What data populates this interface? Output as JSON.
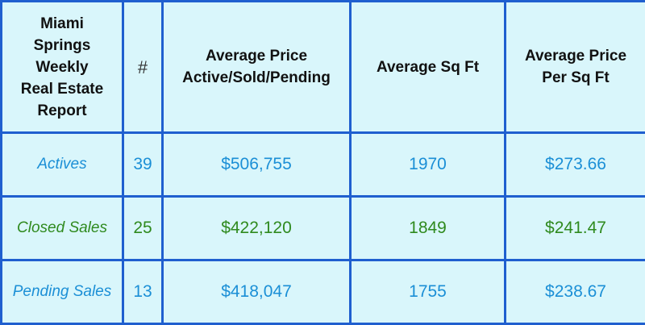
{
  "colors": {
    "background": "#d9f6fb",
    "border": "#1f5fcf",
    "actives": "#1b8fd6",
    "closed": "#2f8a1e",
    "pending": "#1b8fd6"
  },
  "header": {
    "title": "Miami\nSprings\nWeekly\nReal Estate\nReport",
    "count": "#",
    "avg_price": "Average Price\nActive/Sold/Pending",
    "avg_sqft": "Average Sq Ft",
    "avg_price_sqft": "Average Price\nPer Sq Ft"
  },
  "rows": [
    {
      "label": "Actives",
      "count": "39",
      "avg_price": "$506,755",
      "avg_sqft": "1970",
      "avg_price_sqft": "$273.66"
    },
    {
      "label": "Closed Sales",
      "count": "25",
      "avg_price": "$422,120",
      "avg_sqft": "1849",
      "avg_price_sqft": "$241.47"
    },
    {
      "label": "Pending Sales",
      "count": "13",
      "avg_price": "$418,047",
      "avg_sqft": "1755",
      "avg_price_sqft": "$238.67"
    }
  ]
}
